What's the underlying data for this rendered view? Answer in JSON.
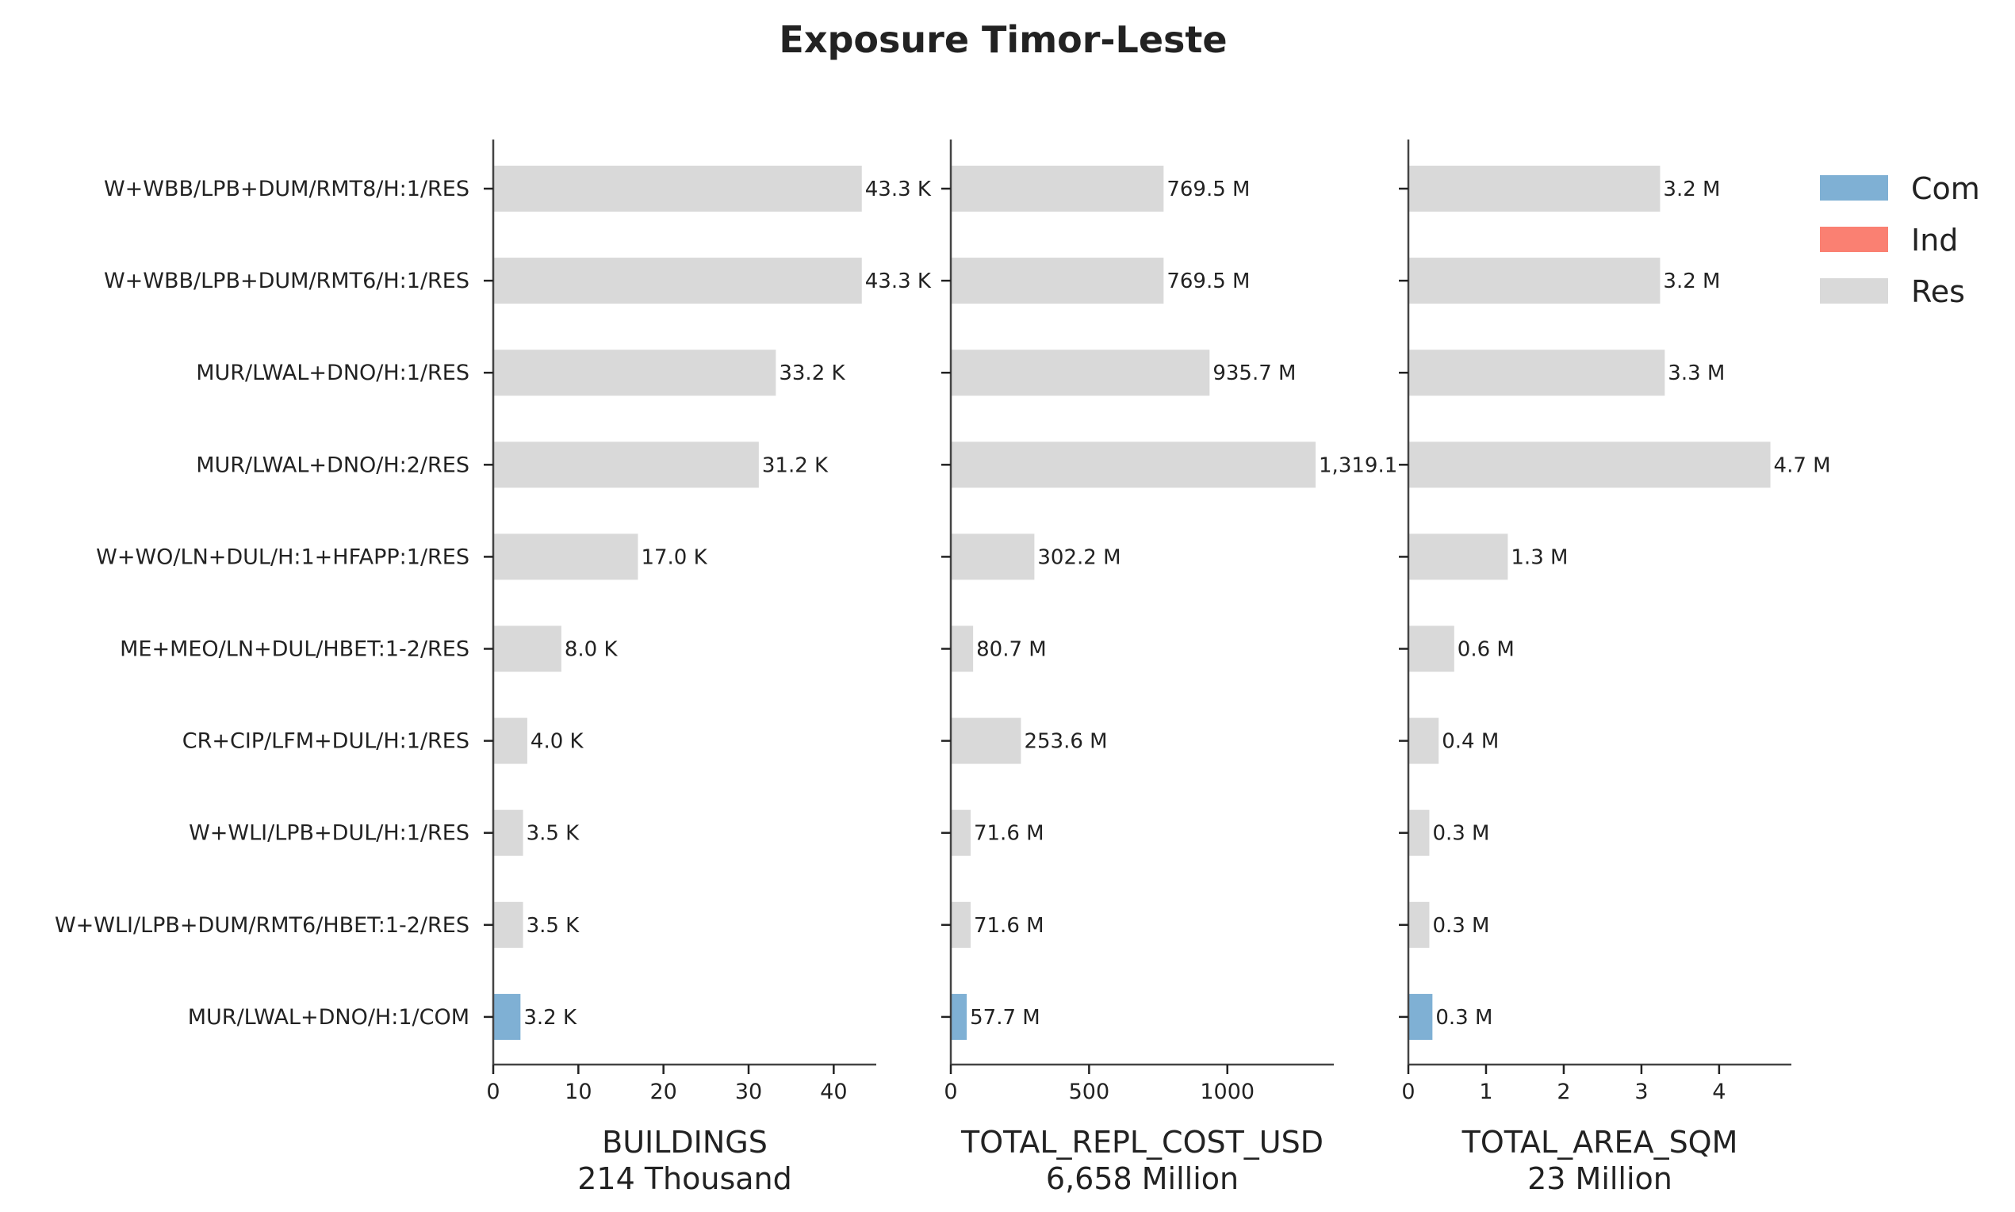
{
  "chart_data": {
    "type": "bar",
    "orientation": "horizontal",
    "title": "Exposure Timor-Leste",
    "categories": [
      "W+WBB/LPB+DUM/RMT8/H:1/RES",
      "W+WBB/LPB+DUM/RMT6/H:1/RES",
      "MUR/LWAL+DNO/H:1/RES",
      "MUR/LWAL+DNO/H:2/RES",
      "W+WO/LN+DUL/H:1+HFAPP:1/RES",
      "ME+MEO/LN+DUL/HBET:1-2/RES",
      "CR+CIP/LFM+DUL/H:1/RES",
      "W+WLI/LPB+DUL/H:1/RES",
      "W+WLI/LPB+DUM/RMT6/HBET:1-2/RES",
      "MUR/LWAL+DNO/H:1/COM"
    ],
    "occupancy": [
      "Res",
      "Res",
      "Res",
      "Res",
      "Res",
      "Res",
      "Res",
      "Res",
      "Res",
      "Com"
    ],
    "colors": {
      "Com": "#7fb0d4",
      "Ind": "#fa8072",
      "Res": "#d9d9d9"
    },
    "legend": {
      "position": "top-right",
      "entries": [
        {
          "name": "Com",
          "color": "#7fb0d4"
        },
        {
          "name": "Ind",
          "color": "#fa8072"
        },
        {
          "name": "Res",
          "color": "#d9d9d9"
        }
      ]
    },
    "panels": [
      {
        "xlabel": "BUILDINGS",
        "xsublabel": "214 Thousand",
        "unit": "Thousand",
        "xlim": [
          0,
          45
        ],
        "ticks": [
          0,
          10,
          20,
          30,
          40
        ],
        "tick_labels": [
          "0",
          "10",
          "20",
          "30",
          "40"
        ],
        "values": [
          43.3,
          43.3,
          33.2,
          31.2,
          17.0,
          8.0,
          4.0,
          3.5,
          3.5,
          3.2
        ],
        "value_labels": [
          "43.3 K",
          "43.3 K",
          "33.2 K",
          "31.2 K",
          "17.0 K",
          "8.0 K",
          "4.0 K",
          "3.5 K",
          "3.5 K",
          "3.2 K"
        ]
      },
      {
        "xlabel": "TOTAL_REPL_COST_USD",
        "xsublabel": "6,658 Million",
        "unit": "Million",
        "xlim": [
          0,
          1385
        ],
        "ticks": [
          0,
          500,
          1000
        ],
        "tick_labels": [
          "0",
          "500",
          "1000"
        ],
        "values": [
          769.5,
          769.5,
          935.7,
          1319.1,
          302.2,
          80.7,
          253.6,
          71.6,
          71.6,
          57.7
        ],
        "value_labels": [
          "769.5 M",
          "769.5 M",
          "935.7 M",
          "1,319.1",
          "302.2 M",
          "80.7 M",
          "253.6 M",
          "71.6 M",
          "71.6 M",
          "57.7 M"
        ]
      },
      {
        "xlabel": "TOTAL_AREA_SQM",
        "xsublabel": "23 Million",
        "unit": "Million",
        "xlim": [
          0,
          4.93
        ],
        "ticks": [
          0,
          1,
          2,
          3,
          4
        ],
        "tick_labels": [
          "0",
          "1",
          "2",
          "3",
          "4"
        ],
        "values": [
          3.24,
          3.24,
          3.3,
          4.66,
          1.28,
          0.59,
          0.39,
          0.27,
          0.27,
          0.31
        ],
        "value_labels": [
          "3.2 M",
          "3.2 M",
          "3.3 M",
          "4.7 M",
          "1.3 M",
          "0.6 M",
          "0.4 M",
          "0.3 M",
          "0.3 M",
          "0.3 M"
        ]
      }
    ]
  }
}
